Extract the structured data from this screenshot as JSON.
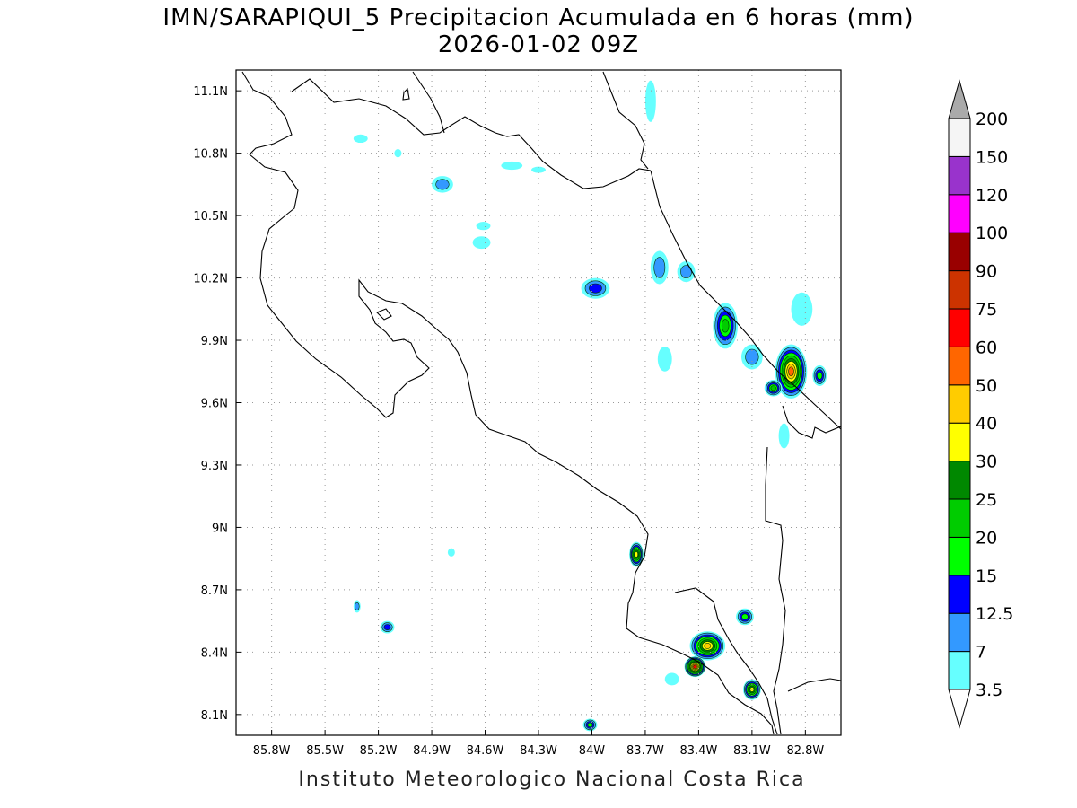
{
  "title": {
    "line1": "IMN/SARAPIQUI_5 Precipitacion Acumulada en 6 horas (mm)",
    "line2": "2026-01-02 09Z"
  },
  "footer": "Instituto Meteorologico Nacional Costa Rica",
  "map": {
    "lon_range": [
      -86.0,
      -82.6
    ],
    "lat_range": [
      8.0,
      11.2
    ],
    "lon_ticks": [
      {
        "value": -85.8,
        "label": "85.8W"
      },
      {
        "value": -85.5,
        "label": "85.5W"
      },
      {
        "value": -85.2,
        "label": "85.2W"
      },
      {
        "value": -84.9,
        "label": "84.9W"
      },
      {
        "value": -84.6,
        "label": "84.6W"
      },
      {
        "value": -84.3,
        "label": "84.3W"
      },
      {
        "value": -84.0,
        "label": "84W"
      },
      {
        "value": -83.7,
        "label": "83.7W"
      },
      {
        "value": -83.4,
        "label": "83.4W"
      },
      {
        "value": -83.1,
        "label": "83.1W"
      },
      {
        "value": -82.8,
        "label": "82.8W"
      }
    ],
    "lat_ticks": [
      {
        "value": 11.1,
        "label": "11.1N"
      },
      {
        "value": 10.8,
        "label": "10.8N"
      },
      {
        "value": 10.5,
        "label": "10.5N"
      },
      {
        "value": 10.2,
        "label": "10.2N"
      },
      {
        "value": 9.9,
        "label": "9.9N"
      },
      {
        "value": 9.6,
        "label": "9.6N"
      },
      {
        "value": 9.3,
        "label": "9.3N"
      },
      {
        "value": 9.0,
        "label": "9N"
      },
      {
        "value": 8.7,
        "label": "8.7N"
      },
      {
        "value": 8.4,
        "label": "8.4N"
      },
      {
        "value": 8.1,
        "label": "8.1N"
      }
    ],
    "grid": true
  },
  "colorbar": {
    "levels": [
      {
        "label": "3.5",
        "color": "#66ffff"
      },
      {
        "label": "7",
        "color": "#3399ff"
      },
      {
        "label": "12.5",
        "color": "#0000ff"
      },
      {
        "label": "15",
        "color": "#00ff00"
      },
      {
        "label": "20",
        "color": "#00cc00"
      },
      {
        "label": "25",
        "color": "#008800"
      },
      {
        "label": "30",
        "color": "#ffff00"
      },
      {
        "label": "40",
        "color": "#ffcc00"
      },
      {
        "label": "50",
        "color": "#ff6600"
      },
      {
        "label": "60",
        "color": "#ff0000"
      },
      {
        "label": "75",
        "color": "#cc3300"
      },
      {
        "label": "90",
        "color": "#990000"
      },
      {
        "label": "100",
        "color": "#ff00ff"
      },
      {
        "label": "120",
        "color": "#9933cc"
      },
      {
        "label": "150",
        "color": "#f5f5f5"
      },
      {
        "label": "200",
        "color": null
      }
    ],
    "over_color": "#aaaaaa",
    "under_color": "#ffffff"
  },
  "precip_cells": [
    {
      "lon": -82.88,
      "lat": 9.75,
      "rx": 0.09,
      "ry": 0.13,
      "level": 8
    },
    {
      "lon": -82.98,
      "lat": 9.67,
      "rx": 0.05,
      "ry": 0.04,
      "level": 4
    },
    {
      "lon": -83.25,
      "lat": 9.97,
      "rx": 0.07,
      "ry": 0.11,
      "level": 4
    },
    {
      "lon": -83.98,
      "lat": 10.15,
      "rx": 0.08,
      "ry": 0.05,
      "level": 2
    },
    {
      "lon": -83.75,
      "lat": 8.87,
      "rx": 0.04,
      "ry": 0.06,
      "level": 6
    },
    {
      "lon": -83.35,
      "lat": 8.43,
      "rx": 0.1,
      "ry": 0.07,
      "level": 7
    },
    {
      "lon": -83.42,
      "lat": 8.33,
      "rx": 0.06,
      "ry": 0.05,
      "level": 9
    },
    {
      "lon": -83.1,
      "lat": 8.22,
      "rx": 0.05,
      "ry": 0.05,
      "level": 6
    },
    {
      "lon": -83.14,
      "lat": 8.57,
      "rx": 0.05,
      "ry": 0.04,
      "level": 3
    },
    {
      "lon": -84.01,
      "lat": 8.05,
      "rx": 0.04,
      "ry": 0.03,
      "level": 3
    },
    {
      "lon": -85.15,
      "lat": 8.52,
      "rx": 0.04,
      "ry": 0.03,
      "level": 2
    },
    {
      "lon": -85.32,
      "lat": 8.62,
      "rx": 0.02,
      "ry": 0.03,
      "level": 1
    },
    {
      "lon": -84.84,
      "lat": 10.65,
      "rx": 0.06,
      "ry": 0.04,
      "level": 1
    },
    {
      "lon": -84.61,
      "lat": 10.45,
      "rx": 0.04,
      "ry": 0.02,
      "level": 0
    },
    {
      "lon": -84.62,
      "lat": 10.37,
      "rx": 0.05,
      "ry": 0.03,
      "level": 0
    },
    {
      "lon": -83.62,
      "lat": 10.25,
      "rx": 0.05,
      "ry": 0.08,
      "level": 1
    },
    {
      "lon": -83.47,
      "lat": 10.23,
      "rx": 0.05,
      "ry": 0.05,
      "level": 1
    },
    {
      "lon": -83.1,
      "lat": 9.82,
      "rx": 0.06,
      "ry": 0.06,
      "level": 1
    },
    {
      "lon": -82.72,
      "lat": 9.73,
      "rx": 0.04,
      "ry": 0.05,
      "level": 3
    },
    {
      "lon": -83.67,
      "lat": 11.05,
      "rx": 0.03,
      "ry": 0.1,
      "level": 0
    },
    {
      "lon": -85.3,
      "lat": 10.87,
      "rx": 0.04,
      "ry": 0.02,
      "level": 0
    },
    {
      "lon": -84.45,
      "lat": 10.74,
      "rx": 0.06,
      "ry": 0.02,
      "level": 0
    },
    {
      "lon": -84.3,
      "lat": 10.72,
      "rx": 0.04,
      "ry": 0.015,
      "level": 0
    },
    {
      "lon": -85.09,
      "lat": 10.8,
      "rx": 0.02,
      "ry": 0.02,
      "level": 0
    },
    {
      "lon": -83.59,
      "lat": 9.81,
      "rx": 0.04,
      "ry": 0.06,
      "level": 0
    },
    {
      "lon": -82.92,
      "lat": 9.44,
      "rx": 0.03,
      "ry": 0.06,
      "level": 0
    },
    {
      "lon": -83.55,
      "lat": 8.27,
      "rx": 0.04,
      "ry": 0.03,
      "level": 0
    },
    {
      "lon": -84.79,
      "lat": 8.88,
      "rx": 0.02,
      "ry": 0.02,
      "level": 0
    },
    {
      "lon": -82.82,
      "lat": 10.05,
      "rx": 0.06,
      "ry": 0.08,
      "level": 0
    }
  ]
}
